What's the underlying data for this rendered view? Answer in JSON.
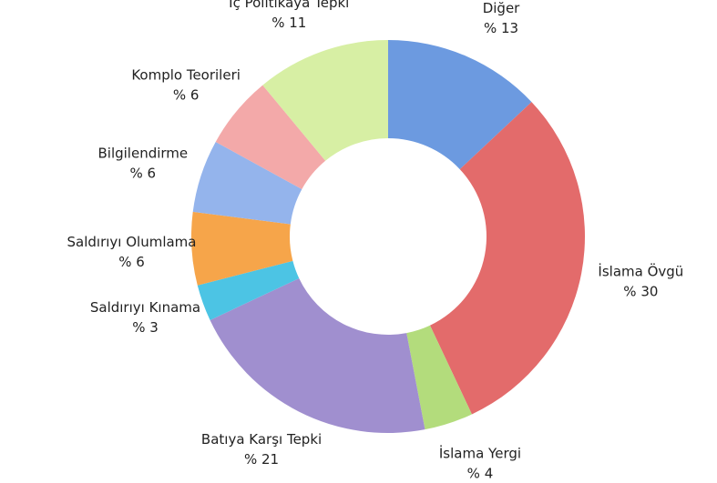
{
  "chart_data": {
    "type": "donut",
    "categories": [
      "Diğer",
      "İslama Övgü",
      "İslama Yergi",
      "Batıya Karşı Tepki",
      "Saldırıyı Kınama",
      "Saldırıyı Olumlama",
      "Bilgilendirme",
      "Komplo Teorileri",
      "İç Politikaya Tepki"
    ],
    "values": [
      13,
      30,
      4,
      21,
      3,
      6,
      6,
      6,
      11
    ],
    "value_labels": [
      "% 13",
      "% 30",
      "% 4",
      "% 21",
      "% 3",
      "% 6",
      "% 6",
      "% 6",
      "% 11"
    ],
    "colors": [
      "#6c9ae0",
      "#e36b6b",
      "#b3dc7c",
      "#a08fcf",
      "#4cc4e4",
      "#f6a54a",
      "#94b4ec",
      "#f3a9a9",
      "#d7efa4"
    ]
  }
}
